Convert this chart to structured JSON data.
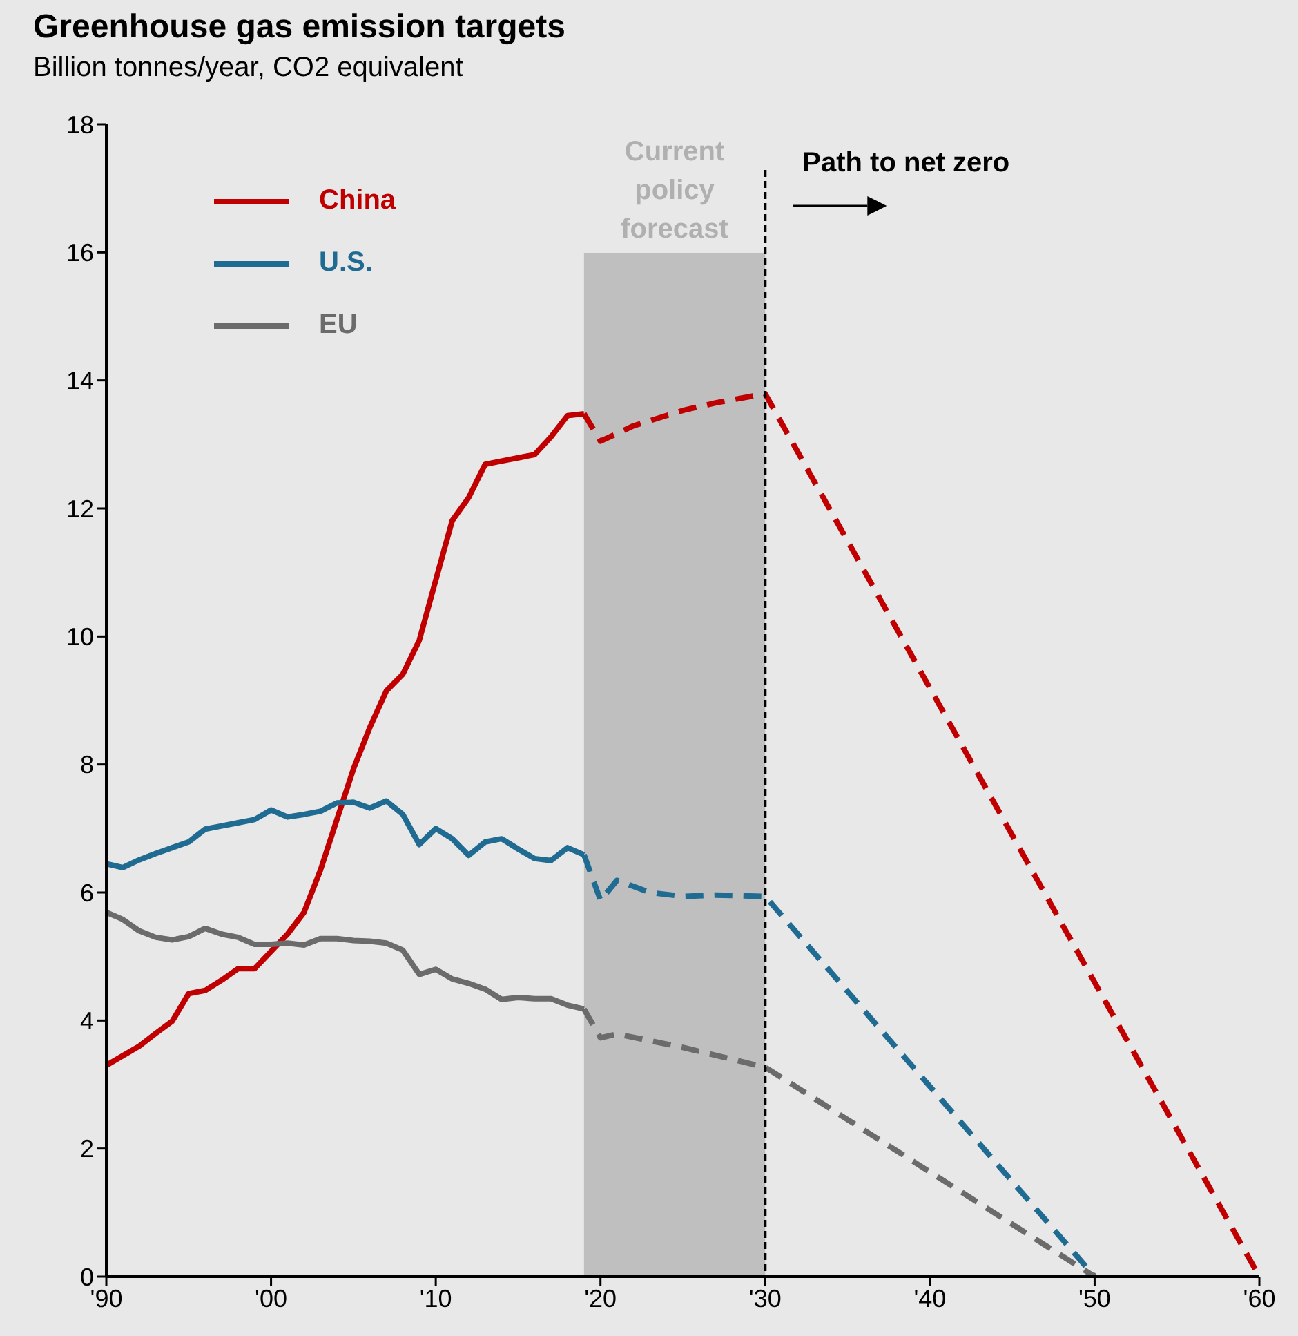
{
  "chart_data": {
    "type": "line",
    "title": "Greenhouse gas emission targets",
    "subtitle": "Billion tonnes/year, CO2 equivalent",
    "xlim": [
      1990,
      2060
    ],
    "xticks": [
      {
        "value": 1990,
        "label": "'90"
      },
      {
        "value": 2000,
        "label": "'00"
      },
      {
        "value": 2010,
        "label": "'10"
      },
      {
        "value": 2020,
        "label": "'20"
      },
      {
        "value": 2030,
        "label": "'30"
      },
      {
        "value": 2040,
        "label": "'40"
      },
      {
        "value": 2050,
        "label": "'50"
      },
      {
        "value": 2060,
        "label": "'60"
      }
    ],
    "ylim": [
      0,
      18
    ],
    "yticks": [
      0,
      2,
      4,
      6,
      8,
      10,
      12,
      14,
      16,
      18
    ],
    "legend": "top left",
    "series": [
      {
        "name": "China",
        "color": "#c00000",
        "line_style": "solid",
        "x": [
          1990,
          1991,
          1992,
          1993,
          1994,
          1995,
          1996,
          1997,
          1998,
          1999,
          2000,
          2001,
          2002,
          2003,
          2004,
          2005,
          2006,
          2007,
          2008,
          2009,
          2010,
          2011,
          2012,
          2013,
          2014,
          2015,
          2016,
          2017,
          2018,
          2019
        ],
        "values": [
          3.3,
          3.45,
          3.6,
          3.8,
          3.99,
          4.42,
          4.47,
          4.63,
          4.81,
          4.81,
          5.08,
          5.35,
          5.69,
          6.35,
          7.14,
          7.93,
          8.58,
          9.15,
          9.41,
          9.94,
          10.88,
          11.81,
          12.17,
          12.69,
          12.74,
          12.79,
          12.84,
          13.12,
          13.45,
          13.48
        ]
      },
      {
        "name": "U.S.",
        "color": "#1f6b92",
        "line_style": "solid",
        "x": [
          1990,
          1991,
          1992,
          1993,
          1994,
          1995,
          1996,
          1997,
          1998,
          1999,
          2000,
          2001,
          2002,
          2003,
          2004,
          2005,
          2006,
          2007,
          2008,
          2009,
          2010,
          2011,
          2012,
          2013,
          2014,
          2015,
          2016,
          2017,
          2018,
          2019
        ],
        "values": [
          6.45,
          6.39,
          6.51,
          6.61,
          6.7,
          6.79,
          6.99,
          7.04,
          7.09,
          7.14,
          7.29,
          7.18,
          7.22,
          7.27,
          7.4,
          7.41,
          7.32,
          7.43,
          7.22,
          6.75,
          7.0,
          6.84,
          6.58,
          6.79,
          6.84,
          6.68,
          6.53,
          6.5,
          6.7,
          6.59
        ]
      },
      {
        "name": "EU",
        "color": "#6b6b6b",
        "line_style": "solid",
        "x": [
          1990,
          1991,
          1992,
          1993,
          1994,
          1995,
          1996,
          1997,
          1998,
          1999,
          2000,
          2001,
          2002,
          2003,
          2004,
          2005,
          2006,
          2007,
          2008,
          2009,
          2010,
          2011,
          2012,
          2013,
          2014,
          2015,
          2016,
          2017,
          2018,
          2019
        ],
        "values": [
          5.69,
          5.58,
          5.4,
          5.3,
          5.26,
          5.31,
          5.44,
          5.35,
          5.3,
          5.19,
          5.19,
          5.21,
          5.18,
          5.28,
          5.28,
          5.25,
          5.24,
          5.21,
          5.1,
          4.72,
          4.8,
          4.65,
          4.58,
          4.49,
          4.33,
          4.36,
          4.34,
          4.34,
          4.24,
          4.18
        ]
      },
      {
        "color": "#c00000",
        "line_style": "dashed",
        "x": [
          2019,
          2020,
          2022,
          2025,
          2027,
          2030,
          2060
        ],
        "values": [
          13.48,
          13.05,
          13.29,
          13.53,
          13.65,
          13.79,
          0
        ]
      },
      {
        "color": "#1f6b92",
        "line_style": "dashed",
        "x": [
          2019,
          2020,
          2021,
          2023,
          2025,
          2027,
          2030,
          2050
        ],
        "values": [
          6.59,
          5.88,
          6.19,
          6.0,
          5.94,
          5.96,
          5.94,
          0
        ]
      },
      {
        "color": "#6b6b6b",
        "line_style": "dashed",
        "x": [
          2019,
          2020,
          2021,
          2025,
          2030,
          2050
        ],
        "values": [
          4.18,
          3.73,
          3.79,
          3.58,
          3.27,
          0
        ]
      }
    ],
    "bands": [
      {
        "axis": "x",
        "from": 2019,
        "to": 2030,
        "label": "Current policy forecast",
        "color": "#bfbfbf"
      }
    ],
    "ref_lines": [
      {
        "axis": "x",
        "value": 2030,
        "label": "Path to net zero",
        "color": "#000000",
        "line_style": "dashed"
      }
    ]
  }
}
